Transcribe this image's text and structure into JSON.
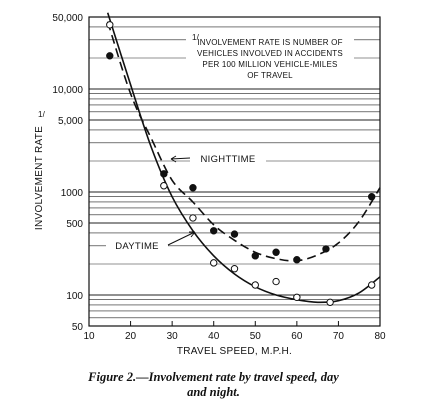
{
  "chart_data": {
    "type": "scatter",
    "x_label": "TRAVEL SPEED, M.P.H.",
    "y_label": "INVOLVEMENT RATE",
    "y_label_footnote_marker": "1/",
    "y_scale": "log",
    "xlim": [
      10,
      80
    ],
    "ylim": [
      50,
      50000
    ],
    "x_ticks": [
      "10",
      "20",
      "30",
      "40",
      "50",
      "60",
      "70",
      "80"
    ],
    "y_ticks": [
      {
        "value": 50,
        "label": "50"
      },
      {
        "value": 100,
        "label": "100"
      },
      {
        "value": 500,
        "label": "500"
      },
      {
        "value": 1000,
        "label": "1000"
      },
      {
        "value": 5000,
        "label": "5,000"
      },
      {
        "value": 10000,
        "label": "10,000"
      },
      {
        "value": 50000,
        "label": "50,000"
      }
    ],
    "grid": "horizontal log gridlines",
    "footnote": {
      "marker": "1/",
      "lines": [
        "INVOLVEMENT RATE IS NUMBER OF",
        "VEHICLES INVOLVED IN ACCIDENTS",
        "PER 100 MILLION VEHICLE-MILES",
        "OF TRAVEL"
      ]
    },
    "series": [
      {
        "name": "NIGHTTIME",
        "line_style": "dashed",
        "marker": "filled-circle",
        "points": [
          {
            "x": 15,
            "y": 21000
          },
          {
            "x": 28,
            "y": 1500
          },
          {
            "x": 35,
            "y": 1100
          },
          {
            "x": 40,
            "y": 420
          },
          {
            "x": 45,
            "y": 390
          },
          {
            "x": 50,
            "y": 240
          },
          {
            "x": 55,
            "y": 260
          },
          {
            "x": 60,
            "y": 220
          },
          {
            "x": 67,
            "y": 280
          },
          {
            "x": 78,
            "y": 900
          }
        ],
        "curve": [
          {
            "x": 14.5,
            "y": 45000
          },
          {
            "x": 20,
            "y": 9000
          },
          {
            "x": 25,
            "y": 3300
          },
          {
            "x": 30,
            "y": 1300
          },
          {
            "x": 35,
            "y": 800
          },
          {
            "x": 40,
            "y": 480
          },
          {
            "x": 45,
            "y": 340
          },
          {
            "x": 50,
            "y": 260
          },
          {
            "x": 55,
            "y": 225
          },
          {
            "x": 60,
            "y": 215
          },
          {
            "x": 65,
            "y": 245
          },
          {
            "x": 70,
            "y": 320
          },
          {
            "x": 75,
            "y": 520
          },
          {
            "x": 80,
            "y": 1100
          }
        ]
      },
      {
        "name": "DAYTIME",
        "line_style": "solid",
        "marker": "open-circle",
        "points": [
          {
            "x": 15,
            "y": 42000
          },
          {
            "x": 28,
            "y": 1150
          },
          {
            "x": 35,
            "y": 560
          },
          {
            "x": 40,
            "y": 205
          },
          {
            "x": 45,
            "y": 180
          },
          {
            "x": 50,
            "y": 125
          },
          {
            "x": 55,
            "y": 135
          },
          {
            "x": 60,
            "y": 95
          },
          {
            "x": 68,
            "y": 85
          },
          {
            "x": 78,
            "y": 125
          }
        ],
        "curve": [
          {
            "x": 14.5,
            "y": 55000
          },
          {
            "x": 20,
            "y": 11000
          },
          {
            "x": 25,
            "y": 2700
          },
          {
            "x": 30,
            "y": 900
          },
          {
            "x": 35,
            "y": 420
          },
          {
            "x": 40,
            "y": 240
          },
          {
            "x": 45,
            "y": 160
          },
          {
            "x": 50,
            "y": 120
          },
          {
            "x": 55,
            "y": 100
          },
          {
            "x": 60,
            "y": 90
          },
          {
            "x": 65,
            "y": 85
          },
          {
            "x": 70,
            "y": 88
          },
          {
            "x": 75,
            "y": 105
          },
          {
            "x": 80,
            "y": 150
          }
        ]
      }
    ]
  },
  "caption": {
    "line1": "Figure 2.—Involvement rate by travel speed, day",
    "line2": "and night."
  }
}
